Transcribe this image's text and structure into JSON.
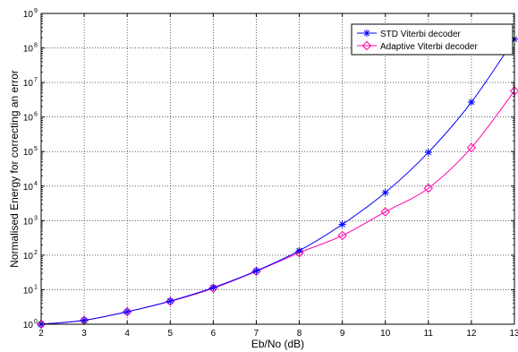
{
  "chart_data": {
    "type": "line",
    "title": "",
    "xlabel": "Eb/No (dB)",
    "ylabel": "Normalised Energy for correcting an error",
    "x": [
      2,
      3,
      4,
      5,
      6,
      7,
      8,
      9,
      10,
      11,
      12,
      13
    ],
    "xlim": [
      2,
      13
    ],
    "ylim": [
      1,
      1000000000
    ],
    "yscale": "log",
    "grid": true,
    "legend_position": "top-right",
    "x_ticks": [
      "2",
      "3",
      "4",
      "5",
      "6",
      "7",
      "8",
      "9",
      "10",
      "11",
      "12",
      "13"
    ],
    "y_tick_base": "10",
    "y_tick_exponents": [
      "0",
      "1",
      "2",
      "3",
      "4",
      "5",
      "6",
      "7",
      "8",
      "9"
    ],
    "series": [
      {
        "name": "STD Viterbi decoder",
        "color": "#0000ff",
        "marker": "asterisk",
        "values": [
          1,
          1.3,
          2.3,
          4.7,
          11.5,
          35,
          135,
          780,
          6500,
          95000,
          2700000,
          180000000
        ]
      },
      {
        "name": "Adaptive Viterbi decoder",
        "color": "#ff00aa",
        "marker": "diamond",
        "values": [
          1,
          1.3,
          2.3,
          4.6,
          11,
          34,
          118,
          370,
          1800,
          8700,
          130000,
          5700000
        ]
      }
    ]
  }
}
